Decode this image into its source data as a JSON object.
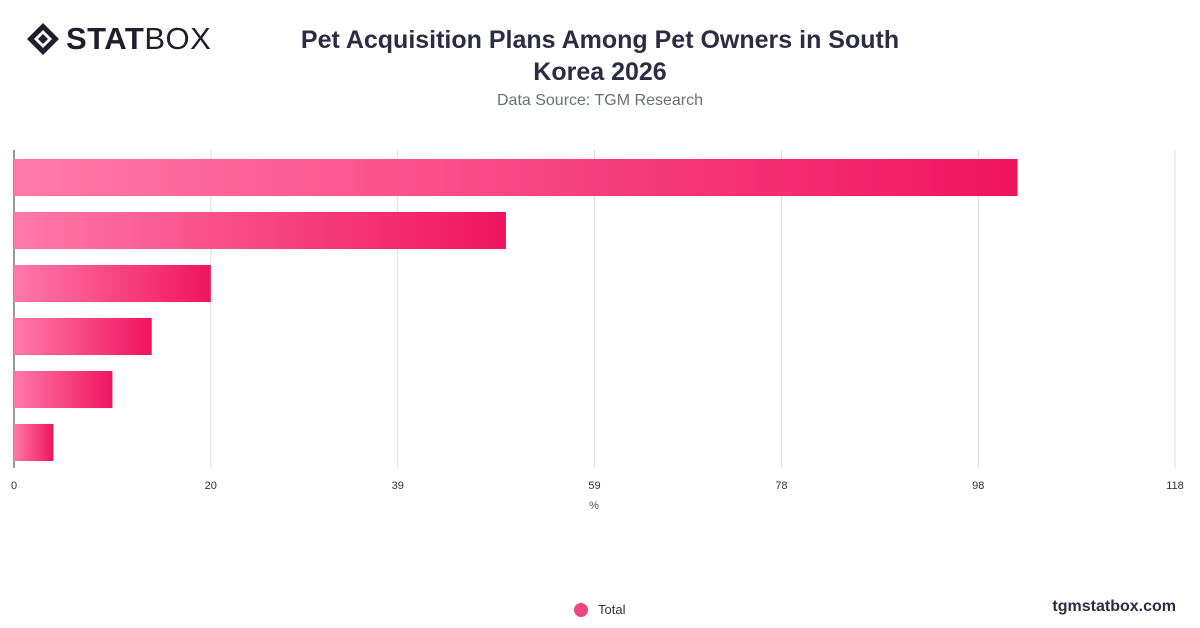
{
  "header": {
    "logo_bold": "STAT",
    "logo_light": "BOX",
    "title_line1": "Pet Acquisition Plans Among Pet Owners in South",
    "title_line2": "Korea 2026",
    "subtitle": "Data Source: TGM Research"
  },
  "footer": {
    "brand": "tgmstatbox.com",
    "legend_label": "Total"
  },
  "colors": {
    "bar_start": "#ff7aa8",
    "bar_end": "#f0145f",
    "grid": "#dcdcdc",
    "axis": "#333333",
    "text": "#333333"
  },
  "chart_data": {
    "type": "bar",
    "orientation": "horizontal",
    "categories": [
      "",
      "",
      "",
      "",
      "",
      ""
    ],
    "series": [
      {
        "name": "Total",
        "values": [
          102,
          50,
          20,
          14,
          10,
          4
        ]
      }
    ],
    "xlabel": "%",
    "xlim": [
      0,
      118
    ],
    "xticks": [
      0,
      20,
      39,
      59,
      78,
      98,
      118
    ],
    "grid": true,
    "legend": "bottom"
  }
}
